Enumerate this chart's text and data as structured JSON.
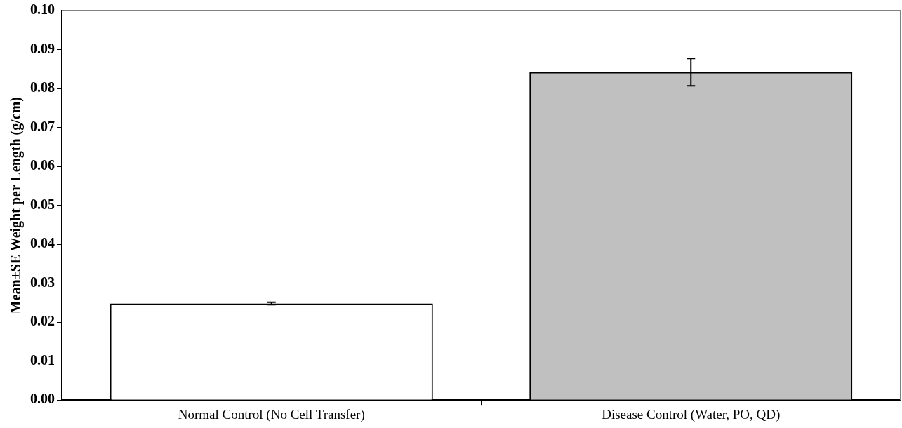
{
  "chart_data": {
    "type": "bar",
    "ylabel": "Mean±SE Weight per Length (g/cm)",
    "categories": [
      "Normal Control (No Cell Transfer)",
      "Disease Control (Water, PO, QD)"
    ],
    "values": [
      0.0248,
      0.0842
    ],
    "errors": [
      0.0003,
      0.0035
    ],
    "colors": [
      "#ffffff",
      "#c0c0c0"
    ],
    "ylim": [
      0,
      0.1
    ],
    "yticks": [
      {
        "value": 0,
        "label": "0.00"
      },
      {
        "value": 0.01,
        "label": "0.01"
      },
      {
        "value": 0.02,
        "label": "0.02"
      },
      {
        "value": 0.03,
        "label": "0.03"
      },
      {
        "value": 0.04,
        "label": "0.04"
      },
      {
        "value": 0.05,
        "label": "0.05"
      },
      {
        "value": 0.06,
        "label": "0.06"
      },
      {
        "value": 0.07,
        "label": "0.07"
      },
      {
        "value": 0.08,
        "label": "0.08"
      },
      {
        "value": 0.09,
        "label": "0.09"
      },
      {
        "value": 0.1,
        "label": "0.10"
      }
    ],
    "grid": false,
    "legend": false
  }
}
